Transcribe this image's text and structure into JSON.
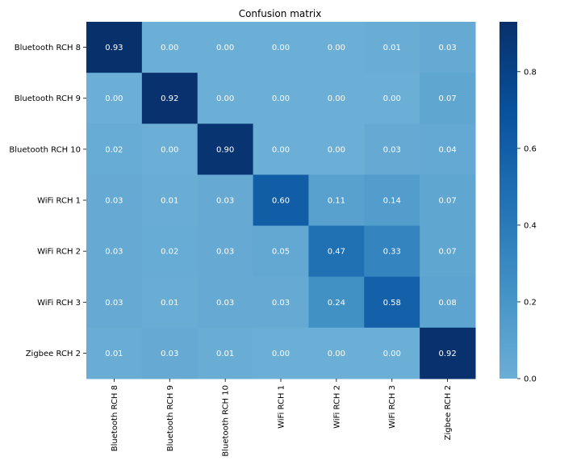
{
  "chart_data": {
    "type": "heatmap",
    "title": "Confusion matrix",
    "row_labels": [
      "Bluetooth RCH 8",
      "Bluetooth RCH 9",
      "Bluetooth RCH 10",
      "WiFi RCH 1",
      "WiFi RCH 2",
      "WiFi RCH 3",
      "Zigbee RCH 2"
    ],
    "col_labels": [
      "Bluetooth RCH 8",
      "Bluetooth RCH 9",
      "Bluetooth RCH 10",
      "WiFi RCH 1",
      "WiFi RCH 2",
      "WiFi RCH 3",
      "Zigbee RCH 2"
    ],
    "values": [
      [
        0.93,
        0.0,
        0.0,
        0.0,
        0.0,
        0.01,
        0.03
      ],
      [
        0.0,
        0.92,
        0.0,
        0.0,
        0.0,
        0.0,
        0.07
      ],
      [
        0.02,
        0.0,
        0.9,
        0.0,
        0.0,
        0.03,
        0.04
      ],
      [
        0.03,
        0.01,
        0.03,
        0.6,
        0.11,
        0.14,
        0.07
      ],
      [
        0.03,
        0.02,
        0.03,
        0.05,
        0.47,
        0.33,
        0.07
      ],
      [
        0.03,
        0.01,
        0.03,
        0.03,
        0.24,
        0.58,
        0.08
      ],
      [
        0.01,
        0.03,
        0.01,
        0.0,
        0.0,
        0.0,
        0.92
      ]
    ],
    "colorbar": {
      "min": 0.0,
      "max": 0.93,
      "ticks": [
        "0.0",
        "0.2",
        "0.4",
        "0.6",
        "0.8"
      ]
    },
    "colormap": [
      "#6baed6",
      "#4292c6",
      "#2171b5",
      "#08519c",
      "#08306b"
    ],
    "grid": false,
    "colorbar_placement": "right"
  }
}
